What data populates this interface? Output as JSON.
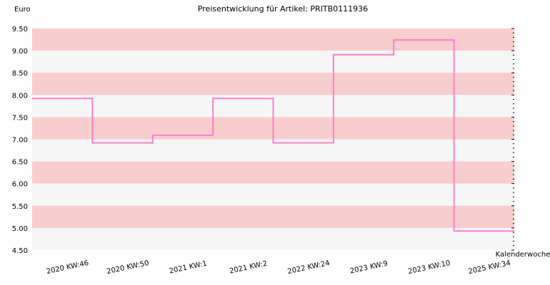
{
  "chart_data": {
    "type": "line",
    "step": true,
    "title": "Preisentwicklung für Artikel: PRITB0111936",
    "ylabel": "Euro",
    "xlabel": "Kalenderwoche",
    "ylim": [
      4.5,
      9.5
    ],
    "yticks": [
      "9.50",
      "9.00",
      "8.50",
      "8.00",
      "7.50",
      "7.00",
      "6.50",
      "6.00",
      "5.50",
      "5.00",
      "4.50"
    ],
    "categories": [
      "2020 KW:46",
      "2020 KW:50",
      "2021 KW:1",
      "2021 KW:2",
      "2022 KW:24",
      "2023 KW:9",
      "2023 KW:10",
      "2025 KW:34"
    ],
    "values": [
      7.92,
      6.92,
      7.09,
      7.92,
      6.92,
      8.91,
      9.24,
      4.93
    ],
    "grid": true,
    "band_colors": [
      "#f8cdcd",
      "#f6f6f6"
    ],
    "line_color": "#ff7fc9"
  }
}
